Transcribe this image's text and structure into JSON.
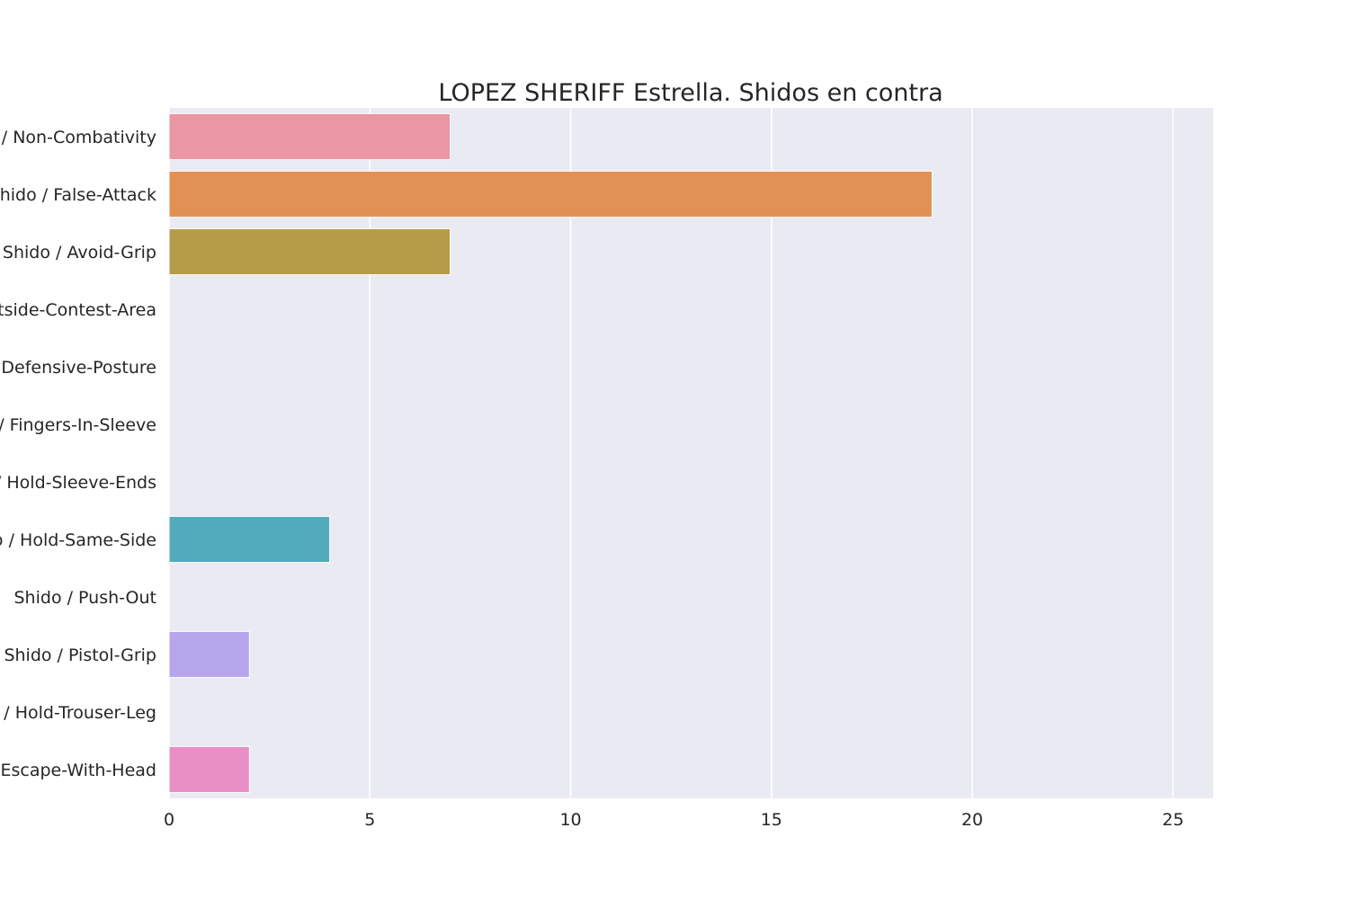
{
  "chart_data": {
    "type": "bar",
    "orientation": "horizontal",
    "title": "LOPEZ SHERIFF Estrella. Shidos en contra",
    "xlabel": "",
    "ylabel": "",
    "xlim": [
      0,
      26
    ],
    "x_ticks": [
      0,
      5,
      10,
      15,
      20,
      25
    ],
    "grid": true,
    "categories": [
      "Shido / Non-Combativity",
      "Shido / False-Attack",
      "Shido / Avoid-Grip",
      "Shido / Outside-Contest-Area",
      "Shido / Defensive-Posture",
      "Shido / Fingers-In-Sleeve",
      "Shido / Hold-Sleeve-Ends",
      "Shido / Hold-Same-Side",
      "Shido / Push-Out",
      "Shido / Pistol-Grip",
      "Shido / Hold-Trouser-Leg",
      "Shido / Escape-With-Head"
    ],
    "values": [
      7,
      19,
      7,
      0,
      0,
      0,
      0,
      4,
      0,
      2,
      0,
      2
    ],
    "colors": [
      "#ea96a3",
      "#e19153",
      "#b69c48",
      "#9aa845",
      "#5fb04e",
      "#55ad88",
      "#58aba0",
      "#51abbc",
      "#6aaee8",
      "#b6a6ec",
      "#e78fe9",
      "#e98fc6"
    ],
    "plot_background": "#eaeaf2",
    "grid_color": "#ffffff"
  }
}
